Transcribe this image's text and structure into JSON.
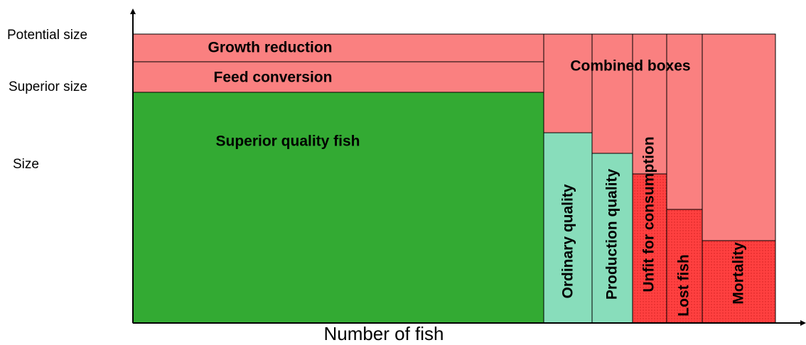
{
  "y_axis": {
    "label": "Size",
    "levels": [
      "Potential size",
      "Superior size"
    ]
  },
  "x_axis": {
    "label": "Number of fish"
  },
  "boxes": {
    "growth_reduction": "Growth reduction",
    "feed_conversion": "Feed conversion",
    "combined": "Combined boxes",
    "superior": "Superior quality fish",
    "columns": [
      "Ordinary quality",
      "Production quality",
      "Unfit for consumption",
      "Lost fish",
      "Mortality"
    ]
  }
}
